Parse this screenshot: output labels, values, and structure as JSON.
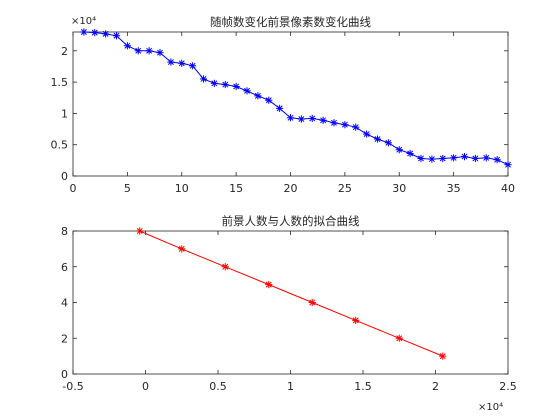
{
  "chart_data": [
    {
      "type": "line",
      "title": "随帧数变化前景像素数变化曲线",
      "xlabel": "",
      "ylabel": "",
      "xlim": [
        0,
        40
      ],
      "ylim": [
        0,
        23000
      ],
      "y_exponent_label": "×10⁴",
      "xticks": [
        0,
        5,
        10,
        15,
        20,
        25,
        30,
        35,
        40
      ],
      "xtick_labels": [
        "0",
        "5",
        "10",
        "15",
        "20",
        "25",
        "30",
        "35",
        "40"
      ],
      "yticks": [
        0,
        5000,
        10000,
        15000,
        20000
      ],
      "ytick_labels": [
        "0",
        "0.5",
        "1",
        "1.5",
        "2"
      ],
      "grid": false,
      "series": [
        {
          "color": "#0000ff",
          "marker": "asterisk",
          "x": [
            1,
            2,
            3,
            4,
            5,
            6,
            7,
            8,
            9,
            10,
            11,
            12,
            13,
            14,
            15,
            16,
            17,
            18,
            19,
            20,
            21,
            22,
            23,
            24,
            25,
            26,
            27,
            28,
            29,
            30,
            31,
            32,
            33,
            34,
            35,
            36,
            37,
            38,
            39,
            40
          ],
          "values": [
            23000,
            22900,
            22700,
            22400,
            20800,
            20000,
            20000,
            19700,
            18200,
            18000,
            17600,
            15500,
            14800,
            14600,
            14300,
            13600,
            12800,
            12100,
            10800,
            9300,
            9100,
            9200,
            8900,
            8500,
            8200,
            7800,
            6700,
            5900,
            5300,
            4200,
            3600,
            2800,
            2700,
            2800,
            2900,
            3100,
            2800,
            2900,
            2600,
            1800
          ]
        }
      ]
    },
    {
      "type": "line",
      "title": "前景人数与人数的拟合曲线",
      "xlabel": "",
      "ylabel": "",
      "xlim": [
        -5000,
        25000
      ],
      "ylim": [
        0,
        8
      ],
      "x_exponent_label": "×10⁴",
      "xticks": [
        -5000,
        0,
        5000,
        10000,
        15000,
        20000,
        25000
      ],
      "xtick_labels": [
        "-0.5",
        "0",
        "0.5",
        "1",
        "1.5",
        "2",
        "2.5"
      ],
      "yticks": [
        0,
        2,
        4,
        6,
        8
      ],
      "ytick_labels": [
        "0",
        "2",
        "4",
        "6",
        "8"
      ],
      "grid": false,
      "series": [
        {
          "color": "#ff0000",
          "marker": "asterisk",
          "x": [
            -400,
            2500,
            5500,
            8500,
            11500,
            14500,
            17500,
            20500
          ],
          "values": [
            8,
            7,
            6,
            5,
            4,
            3,
            2,
            1
          ]
        }
      ]
    }
  ]
}
